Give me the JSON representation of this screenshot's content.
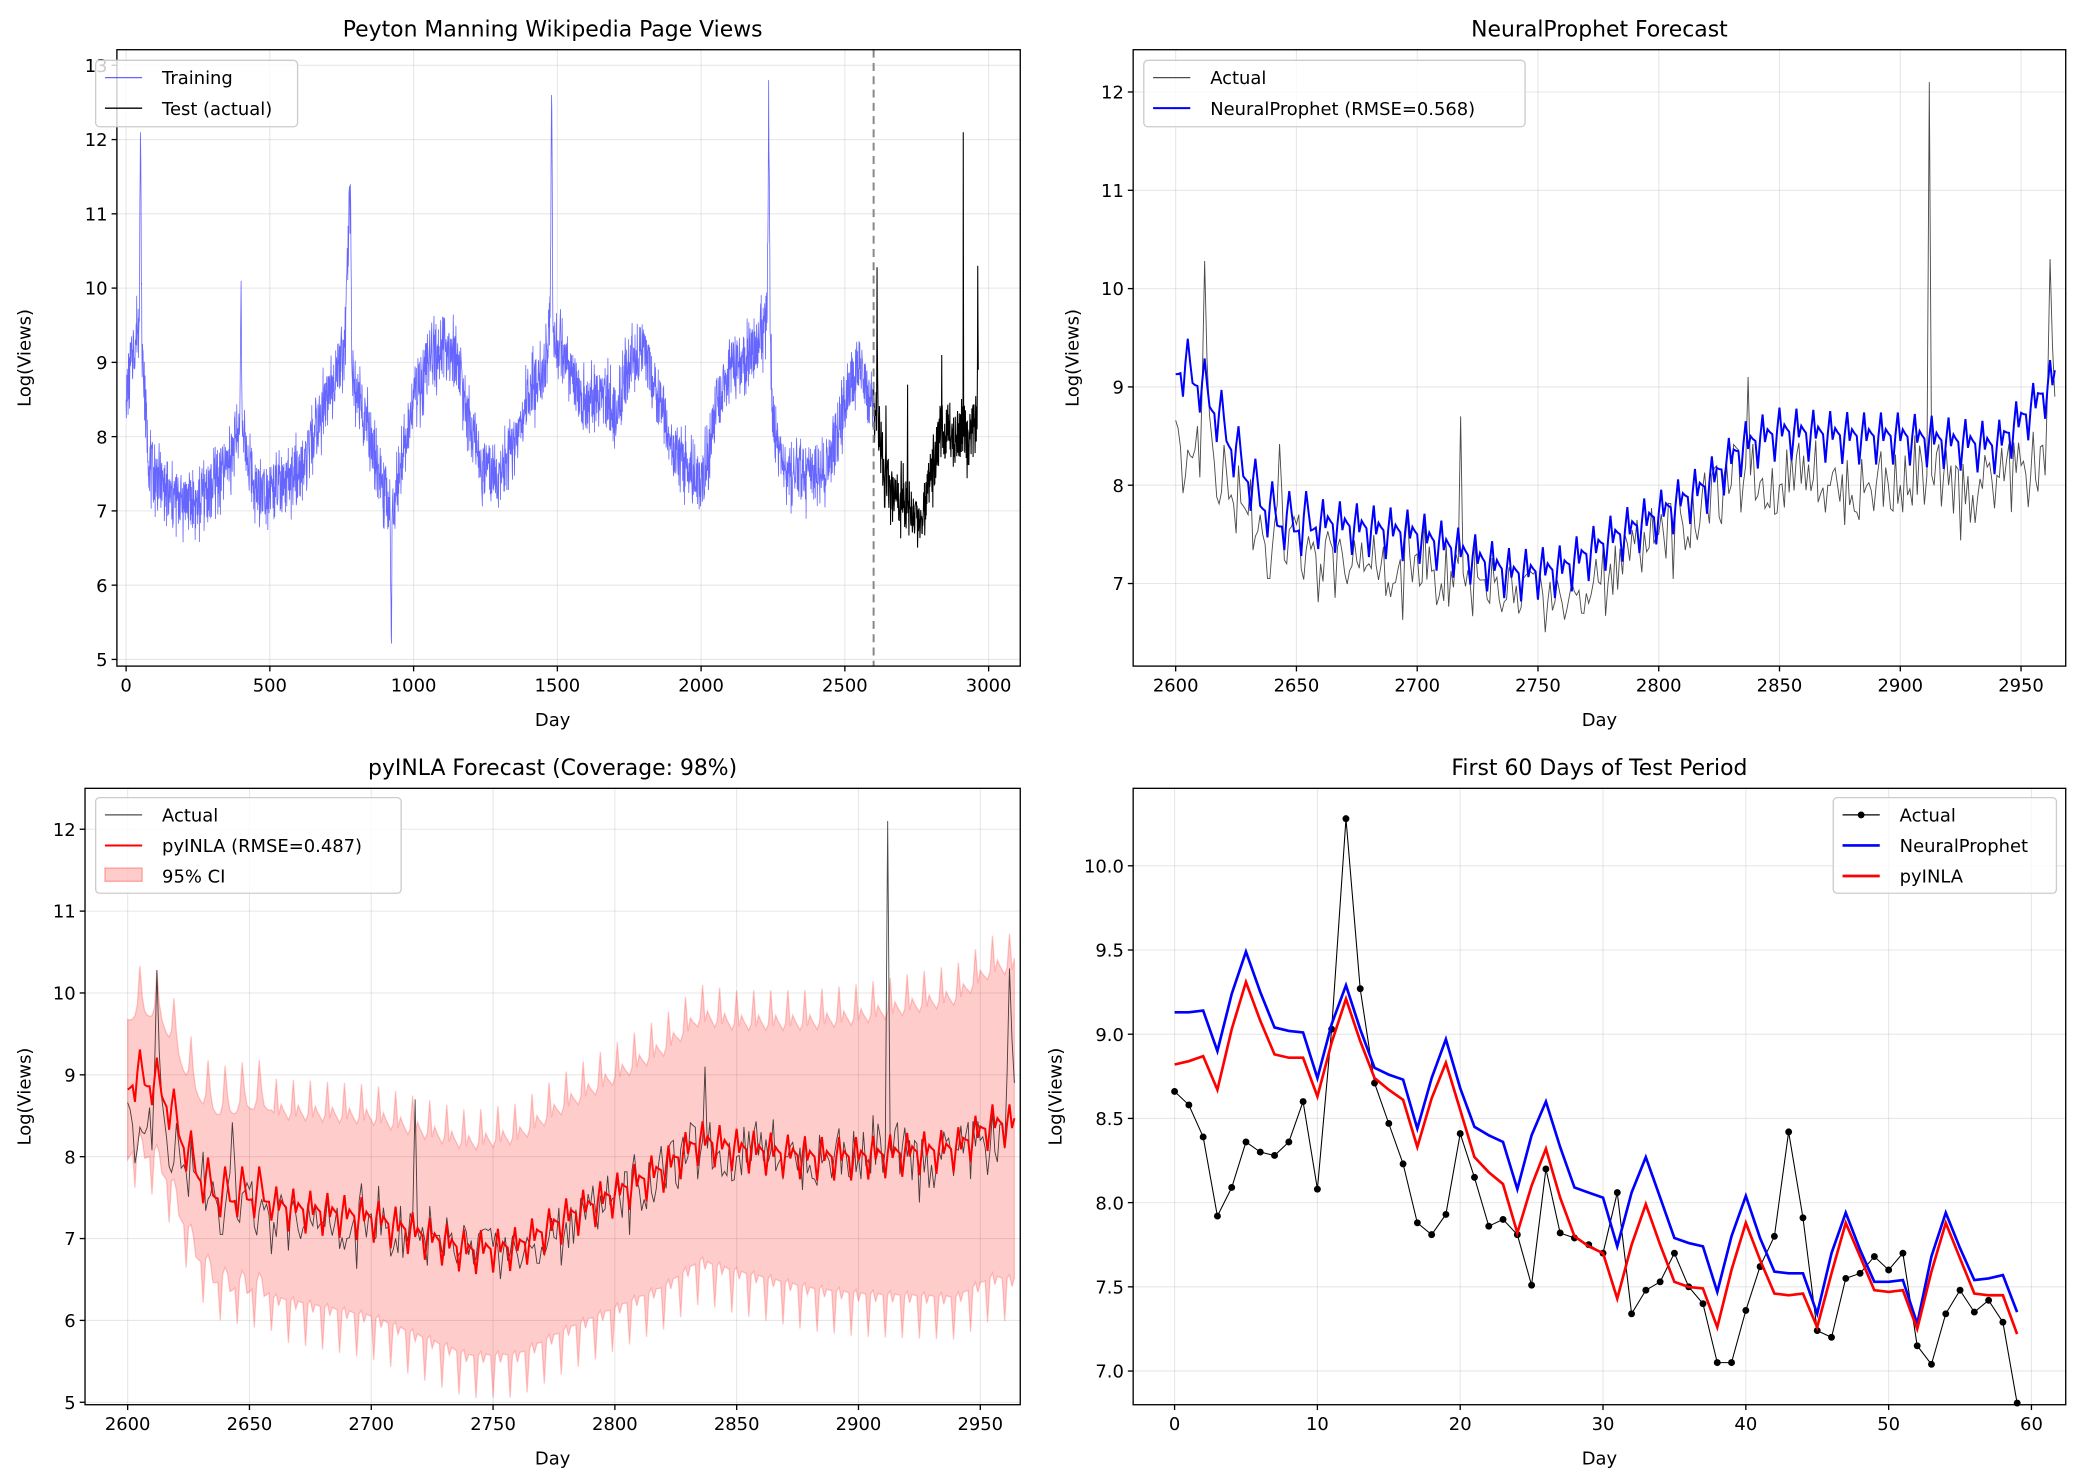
{
  "chart_data": [
    {
      "type": "line",
      "title": "Peyton Manning Wikipedia Page Views",
      "xlabel": "Day",
      "ylabel": "Log(Views)",
      "xlim": [
        -32,
        3110
      ],
      "ylim": [
        4.91,
        13.21
      ],
      "xticks": [
        0,
        500,
        1000,
        1500,
        2000,
        2500,
        3000
      ],
      "yticks": [
        5,
        6,
        7,
        8,
        9,
        10,
        11,
        12,
        13
      ],
      "grid": true,
      "legend_position": "top-left",
      "split_line_x": 2600,
      "series": [
        {
          "name": "Training",
          "color": "#0000ff",
          "noise_amplitude": 0.35,
          "keypoints": [
            [
              0,
              8.5
            ],
            [
              20,
              9.0
            ],
            [
              45,
              9.6
            ],
            [
              50,
              12.1
            ],
            [
              55,
              9.2
            ],
            [
              80,
              7.6
            ],
            [
              150,
              7.2
            ],
            [
              250,
              7.1
            ],
            [
              350,
              7.6
            ],
            [
              395,
              8.1
            ],
            [
              400,
              10.1
            ],
            [
              405,
              8.0
            ],
            [
              450,
              7.3
            ],
            [
              550,
              7.3
            ],
            [
              620,
              7.6
            ],
            [
              680,
              8.3
            ],
            [
              720,
              8.8
            ],
            [
              760,
              9.2
            ],
            [
              780,
              11.4
            ],
            [
              785,
              9.0
            ],
            [
              800,
              8.6
            ],
            [
              850,
              8.0
            ],
            [
              900,
              7.2
            ],
            [
              918,
              7.0
            ],
            [
              922,
              5.3
            ],
            [
              926,
              7.0
            ],
            [
              950,
              7.5
            ],
            [
              1000,
              8.5
            ],
            [
              1050,
              9.0
            ],
            [
              1100,
              9.3
            ],
            [
              1150,
              9.0
            ],
            [
              1200,
              8.0
            ],
            [
              1250,
              7.5
            ],
            [
              1300,
              7.5
            ],
            [
              1350,
              7.8
            ],
            [
              1400,
              8.6
            ],
            [
              1450,
              8.8
            ],
            [
              1475,
              9.6
            ],
            [
              1480,
              12.6
            ],
            [
              1485,
              9.4
            ],
            [
              1500,
              9.3
            ],
            [
              1550,
              8.8
            ],
            [
              1600,
              8.4
            ],
            [
              1650,
              8.6
            ],
            [
              1700,
              8.3
            ],
            [
              1750,
              9.0
            ],
            [
              1800,
              9.2
            ],
            [
              1850,
              8.5
            ],
            [
              1900,
              7.8
            ],
            [
              1950,
              7.6
            ],
            [
              2000,
              7.3
            ],
            [
              2050,
              8.3
            ],
            [
              2100,
              8.9
            ],
            [
              2150,
              9.0
            ],
            [
              2200,
              9.3
            ],
            [
              2230,
              9.6
            ],
            [
              2235,
              12.8
            ],
            [
              2240,
              9.4
            ],
            [
              2250,
              8.0
            ],
            [
              2300,
              7.5
            ],
            [
              2350,
              7.5
            ],
            [
              2400,
              7.5
            ],
            [
              2450,
              7.7
            ],
            [
              2500,
              8.5
            ],
            [
              2550,
              9.0
            ],
            [
              2600,
              8.3
            ]
          ]
        },
        {
          "name": "Test (actual)",
          "color": "#000000",
          "ref": "test_actual"
        }
      ]
    },
    {
      "type": "line",
      "title": "NeuralProphet Forecast",
      "xlabel": "Day",
      "ylabel": "Log(Views)",
      "xlim": [
        2582.4,
        2968.5
      ],
      "ylim": [
        6.16,
        12.43
      ],
      "xticks": [
        2600,
        2650,
        2700,
        2750,
        2800,
        2850,
        2900,
        2950
      ],
      "yticks": [
        7,
        8,
        9,
        10,
        11,
        12
      ],
      "grid": true,
      "legend_position": "top-left",
      "series": [
        {
          "name": "Actual",
          "color": "#000000",
          "ref": "test_actual"
        },
        {
          "name": "NeuralProphet (RMSE=0.568)",
          "color": "#0000ff",
          "ref": "neuralprophet"
        }
      ]
    },
    {
      "type": "line",
      "title": "pyINLA Forecast (Coverage: 98%)",
      "xlabel": "Day",
      "ylabel": "Log(Views)",
      "xlim": [
        2582.5,
        2966.4
      ],
      "ylim": [
        4.97,
        12.5
      ],
      "xticks": [
        2600,
        2650,
        2700,
        2750,
        2800,
        2850,
        2900,
        2950
      ],
      "yticks": [
        5,
        6,
        7,
        8,
        9,
        10,
        11,
        12
      ],
      "grid": true,
      "legend_position": "top-left",
      "series": [
        {
          "name": "Actual",
          "color": "#000000",
          "ref": "test_actual"
        },
        {
          "name": "pyINLA (RMSE=0.487)",
          "color": "#ff0000",
          "ref": "pyinla"
        },
        {
          "name": "95% CI",
          "color": "#ff0000",
          "type": "band",
          "ref": "pyinla"
        }
      ]
    },
    {
      "type": "line",
      "title": "First 60 Days of Test Period",
      "xlabel": "Day",
      "ylabel": "Log(Views)",
      "xlim": [
        -2.9,
        62.4
      ],
      "ylim": [
        6.8,
        10.46
      ],
      "xticks": [
        0,
        10,
        20,
        30,
        40,
        50,
        60
      ],
      "yticks": [
        "7.0",
        "7.5",
        "8.0",
        "8.5",
        "9.0",
        "9.5",
        "10.0"
      ],
      "grid": true,
      "legend_position": "top-right",
      "series": [
        {
          "name": "Actual",
          "color": "#000000",
          "marker": "o",
          "ref": "test_actual"
        },
        {
          "name": "NeuralProphet",
          "color": "#0000ff",
          "ref": "neuralprophet"
        },
        {
          "name": "pyINLA",
          "color": "#ff0000",
          "ref": "pyinla"
        }
      ]
    }
  ],
  "forecast_data": {
    "start_day": 2600,
    "end_day": 2964,
    "weekly_pattern": [
      0.07,
      0.03,
      0.0,
      -0.29,
      0.01,
      0.24,
      -0.05
    ],
    "test_actual": {
      "first_60": [
        8.66,
        8.58,
        8.39,
        7.92,
        8.09,
        8.36,
        8.3,
        8.28,
        8.36,
        8.6,
        8.08,
        9.03,
        10.28,
        9.27,
        8.71,
        8.47,
        8.23,
        7.88,
        7.81,
        7.93,
        8.41,
        8.15,
        7.86,
        7.9,
        7.81,
        7.51,
        8.2,
        7.82,
        7.79,
        7.75,
        7.7,
        8.06,
        7.34,
        7.48,
        7.53,
        7.7,
        7.5,
        7.4,
        7.05,
        7.05,
        7.36,
        7.62,
        7.8,
        8.42,
        7.91,
        7.24,
        7.2,
        7.55,
        7.58,
        7.68,
        7.6,
        7.7,
        7.15,
        7.04,
        7.34,
        7.48,
        7.35,
        7.42,
        7.29,
        6.81
      ],
      "noise_amplitude": 0.35,
      "keypoints": [
        [
          2660,
          7.2
        ],
        [
          2670,
          7.1
        ],
        [
          2680,
          7.2
        ],
        [
          2690,
          7.0
        ],
        [
          2700,
          7.3
        ],
        [
          2710,
          7.0
        ],
        [
          2717,
          7.2
        ],
        [
          2718,
          8.7
        ],
        [
          2719,
          7.1
        ],
        [
          2730,
          6.8
        ],
        [
          2740,
          6.8
        ],
        [
          2750,
          6.9
        ],
        [
          2760,
          6.8
        ],
        [
          2770,
          6.9
        ],
        [
          2780,
          7.2
        ],
        [
          2790,
          7.4
        ],
        [
          2800,
          7.5
        ],
        [
          2810,
          7.6
        ],
        [
          2820,
          7.8
        ],
        [
          2830,
          8.0
        ],
        [
          2836,
          8.2
        ],
        [
          2837,
          9.1
        ],
        [
          2838,
          8.1
        ],
        [
          2850,
          8.0
        ],
        [
          2860,
          8.3
        ],
        [
          2870,
          8.0
        ],
        [
          2880,
          7.9
        ],
        [
          2890,
          8.0
        ],
        [
          2900,
          8.0
        ],
        [
          2911,
          8.1
        ],
        [
          2912,
          12.1
        ],
        [
          2913,
          8.1
        ],
        [
          2920,
          8.0
        ],
        [
          2930,
          7.9
        ],
        [
          2940,
          8.1
        ],
        [
          2950,
          8.2
        ],
        [
          2960,
          8.1
        ],
        [
          2962,
          10.3
        ],
        [
          2964,
          8.9
        ]
      ]
    },
    "neuralprophet": {
      "first_60": [
        9.13,
        9.13,
        9.14,
        8.9,
        9.24,
        9.49,
        9.25,
        9.04,
        9.02,
        9.01,
        8.74,
        9.06,
        9.29,
        9.03,
        8.8,
        8.76,
        8.73,
        8.44,
        8.74,
        8.97,
        8.68,
        8.45,
        8.4,
        8.36,
        8.08,
        8.4,
        8.6,
        8.33,
        8.09,
        8.06,
        8.03,
        7.74,
        8.06,
        8.27,
        8.03,
        7.79,
        7.76,
        7.74,
        7.47,
        7.8,
        8.04,
        7.79,
        7.59,
        7.58,
        7.58,
        7.34,
        7.7,
        7.94,
        7.72,
        7.53,
        7.53,
        7.54,
        7.28,
        7.68,
        7.94,
        7.73,
        7.54,
        7.55,
        7.57,
        7.35
      ],
      "trend_keypoints": [
        [
          2660,
          7.62
        ],
        [
          2700,
          7.5
        ],
        [
          2740,
          7.1
        ],
        [
          2760,
          7.15
        ],
        [
          2780,
          7.45
        ],
        [
          2800,
          7.7
        ],
        [
          2820,
          8.0
        ],
        [
          2835,
          8.4
        ],
        [
          2850,
          8.55
        ],
        [
          2880,
          8.5
        ],
        [
          2900,
          8.5
        ],
        [
          2940,
          8.4
        ],
        [
          2955,
          8.8
        ],
        [
          2964,
          9.1
        ]
      ]
    },
    "pyinla": {
      "first_60": [
        8.82,
        8.84,
        8.87,
        8.67,
        9.03,
        9.31,
        9.08,
        8.88,
        8.86,
        8.86,
        8.63,
        8.95,
        9.21,
        8.96,
        8.74,
        8.67,
        8.61,
        8.33,
        8.62,
        8.83,
        8.55,
        8.27,
        8.18,
        8.11,
        7.82,
        8.1,
        8.32,
        8.03,
        7.8,
        7.74,
        7.7,
        7.43,
        7.75,
        7.99,
        7.75,
        7.53,
        7.5,
        7.49,
        7.26,
        7.6,
        7.88,
        7.66,
        7.46,
        7.45,
        7.46,
        7.26,
        7.58,
        7.88,
        7.68,
        7.48,
        7.47,
        7.48,
        7.25,
        7.59,
        7.88,
        7.67,
        7.46,
        7.45,
        7.45,
        7.22
      ],
      "trend_keypoints": [
        [
          2660,
          7.4
        ],
        [
          2700,
          7.25
        ],
        [
          2740,
          6.85
        ],
        [
          2760,
          6.9
        ],
        [
          2780,
          7.25
        ],
        [
          2800,
          7.55
        ],
        [
          2820,
          7.85
        ],
        [
          2835,
          8.2
        ],
        [
          2850,
          8.1
        ],
        [
          2880,
          8.0
        ],
        [
          2900,
          8.0
        ],
        [
          2940,
          8.1
        ],
        [
          2955,
          8.4
        ],
        [
          2964,
          8.4
        ]
      ],
      "ci_halfwidth_keypoints": [
        [
          2600,
          0.8
        ],
        [
          2650,
          1.1
        ],
        [
          2750,
          1.3
        ],
        [
          2850,
          1.5
        ],
        [
          2964,
          1.9
        ]
      ]
    }
  }
}
